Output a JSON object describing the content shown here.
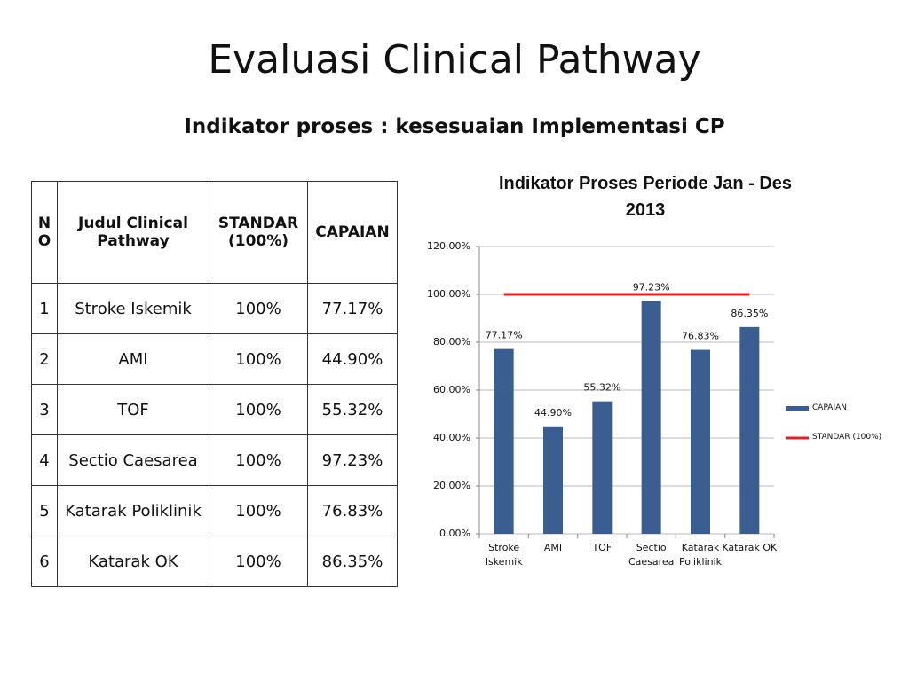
{
  "title": "Evaluasi Clinical Pathway",
  "subtitle": "Indikator proses : kesesuaian Implementasi CP",
  "table": {
    "header": [
      "NO",
      "Judul Clinical Pathway",
      "STANDAR (100%)",
      "CAPAIAN"
    ],
    "rows": [
      [
        "1",
        "Stroke Iskemik",
        "100%",
        "77.17%"
      ],
      [
        "2",
        "AMI",
        "100%",
        "44.90%"
      ],
      [
        "3",
        "TOF",
        "100%",
        "55.32%"
      ],
      [
        "4",
        "Sectio Caesarea",
        "100%",
        "97.23%"
      ],
      [
        "5",
        "Katarak Poliklinik",
        "100%",
        "76.83%"
      ],
      [
        "6",
        "Katarak OK",
        "100%",
        "86.35%"
      ]
    ]
  },
  "chart_data": {
    "type": "bar",
    "title": "Indikator Proses Periode Jan - Des 2013",
    "categories": [
      "Stroke Iskemik",
      "AMI",
      "TOF",
      "Sectio Caesarea",
      "Katarak Poliklinik",
      "Katarak OK"
    ],
    "series": [
      {
        "name": "CAPAIAN",
        "type": "bar",
        "color": "#3b5e91",
        "values": [
          77.17,
          44.9,
          55.32,
          97.23,
          76.83,
          86.35
        ],
        "value_labels": [
          "77.17%",
          "44.90%",
          "55.32%",
          "97.23%",
          "76.83%",
          "86.35%"
        ]
      },
      {
        "name": "STANDAR (100%)",
        "type": "line",
        "color": "#e02020",
        "values": [
          100,
          100,
          100,
          100,
          100,
          100
        ]
      }
    ],
    "ylim": [
      0,
      120
    ],
    "yticks": [
      {
        "value": 0,
        "label": "0.00%"
      },
      {
        "value": 20,
        "label": "20.00%"
      },
      {
        "value": 40,
        "label": "40.00%"
      },
      {
        "value": 60,
        "label": "60.00%"
      },
      {
        "value": 80,
        "label": "80.00%"
      },
      {
        "value": 100,
        "label": "100.00%"
      },
      {
        "value": 120,
        "label": "120.00%"
      }
    ],
    "grid": true,
    "legend": "right"
  }
}
